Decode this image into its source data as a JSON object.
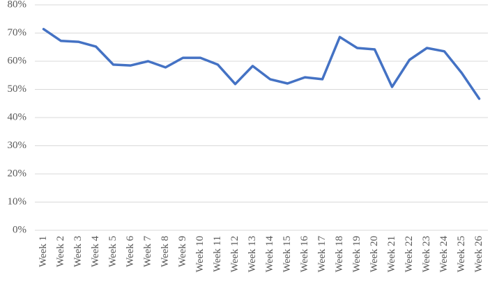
{
  "chart_data": {
    "type": "line",
    "categories": [
      "Week 1",
      "Week 2",
      "Week 3",
      "Week 4",
      "Week 5",
      "Week 6",
      "Week 7",
      "Week 8",
      "Week 9",
      "Week 10",
      "Week 11",
      "Week 12",
      "Week 13",
      "Week 14",
      "Week 15",
      "Week 16",
      "Week 17",
      "Week 18",
      "Week 19",
      "Week 20",
      "Week 21",
      "Week 22",
      "Week 23",
      "Week 24",
      "Week 25",
      "Week 26"
    ],
    "values": [
      71.4,
      67.2,
      66.9,
      65.2,
      58.8,
      58.5,
      60,
      57.8,
      61.2,
      61.2,
      58.8,
      51.9,
      58.3,
      53.6,
      52.1,
      54.3,
      53.6,
      68.6,
      64.7,
      64.2,
      50.9,
      60.5,
      64.7,
      63.5,
      55.8,
      46.7
    ],
    "color": "#4472c4",
    "ylim": [
      0,
      80
    ],
    "yticks": [
      {
        "value": 0,
        "label": "0%"
      },
      {
        "value": 10,
        "label": "10%"
      },
      {
        "value": 20,
        "label": "20%"
      },
      {
        "value": 30,
        "label": "30%"
      },
      {
        "value": 40,
        "label": "40%"
      },
      {
        "value": 50,
        "label": "50%"
      },
      {
        "value": 60,
        "label": "60%"
      },
      {
        "value": 70,
        "label": "70%"
      },
      {
        "value": 80,
        "label": "80%"
      }
    ],
    "grid": true
  }
}
